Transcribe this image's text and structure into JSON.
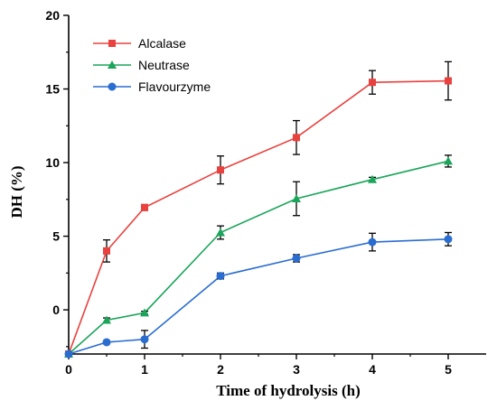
{
  "chart_data": {
    "type": "line",
    "title": "",
    "xlabel": "Time of hydrolysis (h)",
    "ylabel": "DH (%)",
    "xlim": [
      0,
      5.5
    ],
    "ylim": [
      -3,
      20
    ],
    "x_ticks": [
      0,
      1,
      2,
      3,
      4,
      5
    ],
    "y_ticks": [
      0,
      5,
      10,
      15,
      20
    ],
    "grid": false,
    "legend_position": "top-left",
    "series": [
      {
        "name": "Alcalase",
        "color": "#e8413e",
        "marker": "square",
        "x": [
          0,
          0.5,
          1,
          2,
          3,
          4,
          5
        ],
        "y": [
          -3.0,
          4.0,
          6.95,
          9.5,
          11.7,
          15.45,
          15.55
        ],
        "error": [
          0,
          0.75,
          0.2,
          0.95,
          1.15,
          0.8,
          1.3
        ]
      },
      {
        "name": "Neutrase",
        "color": "#1aa55a",
        "marker": "triangle",
        "x": [
          0,
          0.5,
          1,
          2,
          3,
          4,
          5
        ],
        "y": [
          -3.0,
          -0.7,
          -0.2,
          5.25,
          7.55,
          8.85,
          10.1
        ],
        "error": [
          0,
          0.15,
          0.1,
          0.45,
          1.15,
          0.15,
          0.4
        ]
      },
      {
        "name": "Flavourzyme",
        "color": "#2a6dd0",
        "marker": "circle",
        "x": [
          0,
          0.5,
          1,
          2,
          3,
          4,
          5
        ],
        "y": [
          -3.0,
          -2.2,
          -2.0,
          2.3,
          3.5,
          4.6,
          4.8
        ],
        "error": [
          0,
          0.1,
          0.6,
          0.2,
          0.25,
          0.6,
          0.45
        ]
      }
    ]
  }
}
